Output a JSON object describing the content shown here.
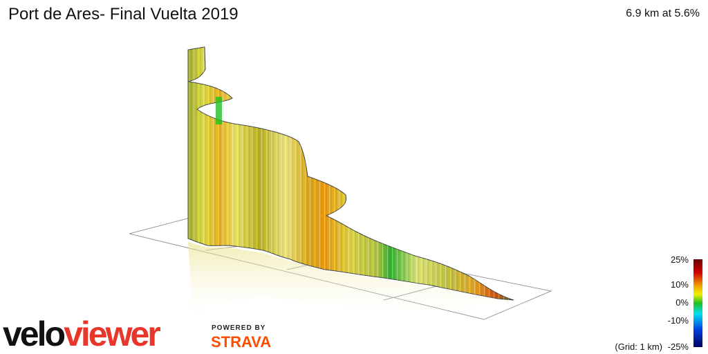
{
  "header": {
    "title": "Port de Ares- Final Vuelta 2019",
    "summary": "6.9 km at 5.6%"
  },
  "legend": {
    "labels": [
      "25%",
      "10%",
      "0%",
      "-10%"
    ],
    "grid_note": "(Grid: 1 km)",
    "bottom_label": "-25%"
  },
  "branding": {
    "logo_left": "velo",
    "logo_right": "viewer",
    "powered_by": "POWERED BY",
    "partner": "STRAVA"
  }
}
